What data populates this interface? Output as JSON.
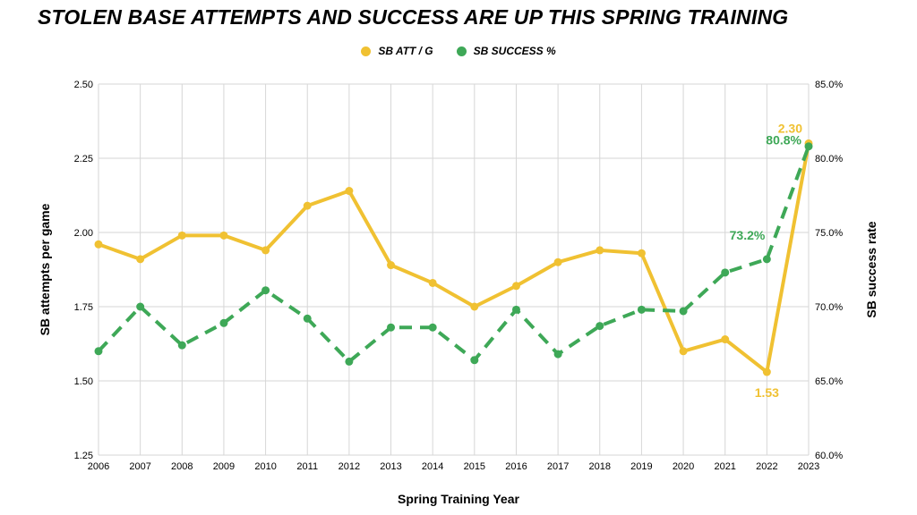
{
  "chart_data": {
    "type": "line",
    "title": "STOLEN BASE ATTEMPTS AND SUCCESS ARE UP THIS SPRING TRAINING",
    "xlabel": "Spring Training Year",
    "ylabel_left": "SB attempts per game",
    "ylabel_right": "SB success rate",
    "categories": [
      "2006",
      "2007",
      "2008",
      "2009",
      "2010",
      "2011",
      "2012",
      "2013",
      "2014",
      "2015",
      "2016",
      "2017",
      "2018",
      "2019",
      "2020",
      "2021",
      "2022",
      "2023"
    ],
    "y_left": {
      "min": 1.25,
      "max": 2.5,
      "ticks": [
        "1.25",
        "1.50",
        "1.75",
        "2.00",
        "2.25",
        "2.50"
      ]
    },
    "y_right": {
      "min": 60,
      "max": 85,
      "ticks": [
        "60.0%",
        "65.0%",
        "70.0%",
        "75.0%",
        "80.0%",
        "85.0%"
      ]
    },
    "grid": true,
    "legend_position": "top",
    "series": [
      {
        "name": "SB ATT / G",
        "axis": "left",
        "color": "#F0C132",
        "style": "solid",
        "values": [
          1.96,
          1.91,
          1.99,
          1.99,
          1.94,
          2.09,
          2.14,
          1.89,
          1.83,
          1.75,
          1.82,
          1.9,
          1.94,
          1.93,
          1.6,
          1.64,
          1.53,
          2.3
        ],
        "data_labels": [
          {
            "index": 16,
            "text": "1.53"
          },
          {
            "index": 17,
            "text": "2.30"
          }
        ]
      },
      {
        "name": "SB SUCCESS %",
        "axis": "right",
        "color": "#3EA857",
        "style": "dashed",
        "values": [
          67.0,
          70.0,
          67.4,
          68.9,
          71.1,
          69.2,
          66.3,
          68.6,
          68.6,
          66.4,
          69.8,
          66.8,
          68.7,
          69.8,
          69.7,
          72.3,
          73.2,
          80.8
        ],
        "data_labels": [
          {
            "index": 16,
            "text": "73.2%"
          },
          {
            "index": 17,
            "text": "80.8%"
          }
        ]
      }
    ]
  }
}
